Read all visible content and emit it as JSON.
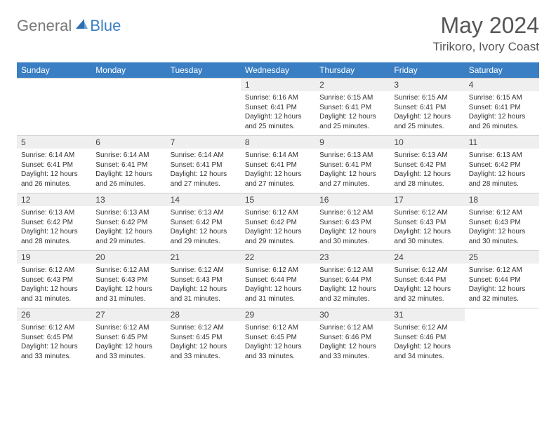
{
  "brand": {
    "general": "General",
    "blue": "Blue"
  },
  "title": "May 2024",
  "location": "Tirikoro, Ivory Coast",
  "colors": {
    "header_bg": "#3a7fc4",
    "header_text": "#ffffff",
    "daynum_bg": "#efefef",
    "border": "#d0d0d0",
    "text": "#333333",
    "logo_gray": "#777777",
    "logo_blue": "#3a7fc4"
  },
  "weekdays": [
    "Sunday",
    "Monday",
    "Tuesday",
    "Wednesday",
    "Thursday",
    "Friday",
    "Saturday"
  ],
  "labels": {
    "sunrise": "Sunrise:",
    "sunset": "Sunset:",
    "daylight": "Daylight:"
  },
  "weeks": [
    [
      null,
      null,
      null,
      {
        "d": "1",
        "sr": "6:16 AM",
        "ss": "6:41 PM",
        "dl": "12 hours and 25 minutes."
      },
      {
        "d": "2",
        "sr": "6:15 AM",
        "ss": "6:41 PM",
        "dl": "12 hours and 25 minutes."
      },
      {
        "d": "3",
        "sr": "6:15 AM",
        "ss": "6:41 PM",
        "dl": "12 hours and 25 minutes."
      },
      {
        "d": "4",
        "sr": "6:15 AM",
        "ss": "6:41 PM",
        "dl": "12 hours and 26 minutes."
      }
    ],
    [
      {
        "d": "5",
        "sr": "6:14 AM",
        "ss": "6:41 PM",
        "dl": "12 hours and 26 minutes."
      },
      {
        "d": "6",
        "sr": "6:14 AM",
        "ss": "6:41 PM",
        "dl": "12 hours and 26 minutes."
      },
      {
        "d": "7",
        "sr": "6:14 AM",
        "ss": "6:41 PM",
        "dl": "12 hours and 27 minutes."
      },
      {
        "d": "8",
        "sr": "6:14 AM",
        "ss": "6:41 PM",
        "dl": "12 hours and 27 minutes."
      },
      {
        "d": "9",
        "sr": "6:13 AM",
        "ss": "6:41 PM",
        "dl": "12 hours and 27 minutes."
      },
      {
        "d": "10",
        "sr": "6:13 AM",
        "ss": "6:42 PM",
        "dl": "12 hours and 28 minutes."
      },
      {
        "d": "11",
        "sr": "6:13 AM",
        "ss": "6:42 PM",
        "dl": "12 hours and 28 minutes."
      }
    ],
    [
      {
        "d": "12",
        "sr": "6:13 AM",
        "ss": "6:42 PM",
        "dl": "12 hours and 28 minutes."
      },
      {
        "d": "13",
        "sr": "6:13 AM",
        "ss": "6:42 PM",
        "dl": "12 hours and 29 minutes."
      },
      {
        "d": "14",
        "sr": "6:13 AM",
        "ss": "6:42 PM",
        "dl": "12 hours and 29 minutes."
      },
      {
        "d": "15",
        "sr": "6:12 AM",
        "ss": "6:42 PM",
        "dl": "12 hours and 29 minutes."
      },
      {
        "d": "16",
        "sr": "6:12 AM",
        "ss": "6:43 PM",
        "dl": "12 hours and 30 minutes."
      },
      {
        "d": "17",
        "sr": "6:12 AM",
        "ss": "6:43 PM",
        "dl": "12 hours and 30 minutes."
      },
      {
        "d": "18",
        "sr": "6:12 AM",
        "ss": "6:43 PM",
        "dl": "12 hours and 30 minutes."
      }
    ],
    [
      {
        "d": "19",
        "sr": "6:12 AM",
        "ss": "6:43 PM",
        "dl": "12 hours and 31 minutes."
      },
      {
        "d": "20",
        "sr": "6:12 AM",
        "ss": "6:43 PM",
        "dl": "12 hours and 31 minutes."
      },
      {
        "d": "21",
        "sr": "6:12 AM",
        "ss": "6:43 PM",
        "dl": "12 hours and 31 minutes."
      },
      {
        "d": "22",
        "sr": "6:12 AM",
        "ss": "6:44 PM",
        "dl": "12 hours and 31 minutes."
      },
      {
        "d": "23",
        "sr": "6:12 AM",
        "ss": "6:44 PM",
        "dl": "12 hours and 32 minutes."
      },
      {
        "d": "24",
        "sr": "6:12 AM",
        "ss": "6:44 PM",
        "dl": "12 hours and 32 minutes."
      },
      {
        "d": "25",
        "sr": "6:12 AM",
        "ss": "6:44 PM",
        "dl": "12 hours and 32 minutes."
      }
    ],
    [
      {
        "d": "26",
        "sr": "6:12 AM",
        "ss": "6:45 PM",
        "dl": "12 hours and 33 minutes."
      },
      {
        "d": "27",
        "sr": "6:12 AM",
        "ss": "6:45 PM",
        "dl": "12 hours and 33 minutes."
      },
      {
        "d": "28",
        "sr": "6:12 AM",
        "ss": "6:45 PM",
        "dl": "12 hours and 33 minutes."
      },
      {
        "d": "29",
        "sr": "6:12 AM",
        "ss": "6:45 PM",
        "dl": "12 hours and 33 minutes."
      },
      {
        "d": "30",
        "sr": "6:12 AM",
        "ss": "6:46 PM",
        "dl": "12 hours and 33 minutes."
      },
      {
        "d": "31",
        "sr": "6:12 AM",
        "ss": "6:46 PM",
        "dl": "12 hours and 34 minutes."
      },
      null
    ]
  ]
}
